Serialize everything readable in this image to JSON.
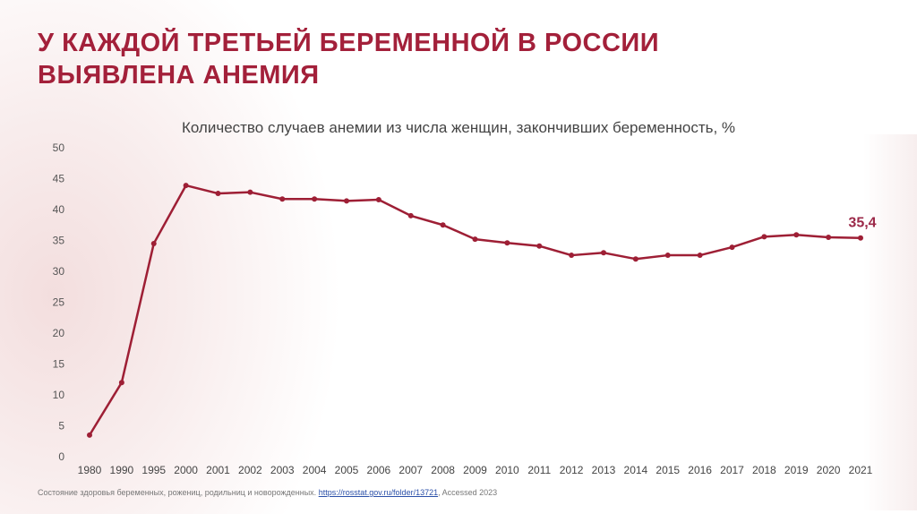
{
  "title": "У КАЖДОЙ ТРЕТЬЕЙ БЕРЕМЕННОЙ В РОССИИ ВЫЯВЛЕНА АНЕМИЯ",
  "chart_data": {
    "type": "line",
    "title": "Количество случаев анемии из числа женщин, закончивших беременность, %",
    "xlabel": "",
    "ylabel": "",
    "categories": [
      "1980",
      "1990",
      "1995",
      "2000",
      "2001",
      "2002",
      "2003",
      "2004",
      "2005",
      "2006",
      "2007",
      "2008",
      "2009",
      "2010",
      "2011",
      "2012",
      "2013",
      "2014",
      "2015",
      "2016",
      "2017",
      "2018",
      "2019",
      "2020",
      "2021"
    ],
    "values": [
      3.5,
      12.0,
      34.5,
      43.9,
      42.6,
      42.8,
      41.7,
      41.7,
      41.4,
      41.6,
      39.0,
      37.5,
      35.2,
      34.6,
      34.1,
      32.6,
      33.0,
      32.0,
      32.6,
      32.6,
      33.9,
      35.6,
      35.9,
      35.5,
      35.4
    ],
    "ylim": [
      0,
      50
    ],
    "yticks": [
      "0",
      "5",
      "10",
      "15",
      "20",
      "25",
      "30",
      "35",
      "40",
      "45",
      "50"
    ],
    "grid": false,
    "annotation": "35,4",
    "color": "#9e1f35"
  },
  "footer": {
    "text": "Состояние здоровья беременных, рожениц, родильниц и новорожденных. ",
    "link": "https://rosstat.gov.ru/folder/13721",
    "suffix": ", Accessed 2023"
  }
}
